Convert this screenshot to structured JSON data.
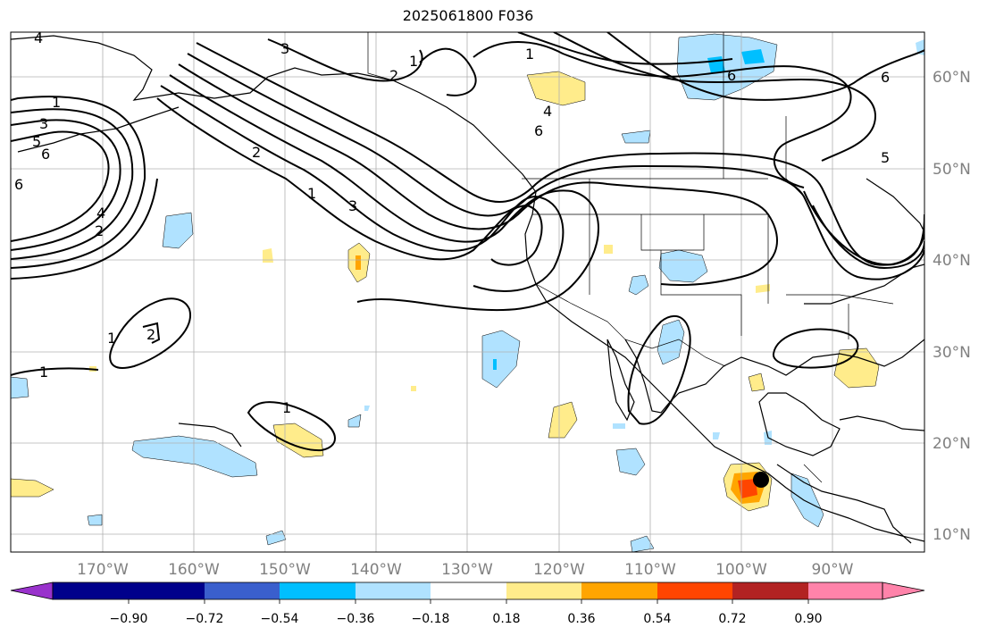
{
  "title": "2025061800 F036",
  "map": {
    "lon_labels": [
      "170°W",
      "160°W",
      "150°W",
      "140°W",
      "130°W",
      "120°W",
      "110°W",
      "100°W",
      "90°W"
    ],
    "lat_labels": [
      "60°N",
      "50°N",
      "40°N",
      "30°N",
      "20°N",
      "10°N"
    ],
    "contour_labels": [
      "4",
      "3",
      "1",
      "2",
      "1",
      "3",
      "5",
      "6",
      "6",
      "4",
      "2",
      "1",
      "2",
      "3",
      "4",
      "6",
      "6",
      "5",
      "6",
      "1",
      "2",
      "1",
      "1",
      "1"
    ],
    "marker": "storm-center-dot"
  },
  "colorbar": {
    "ticks": [
      "−0.90",
      "−0.72",
      "−0.54",
      "−0.36",
      "−0.18",
      "0.18",
      "0.36",
      "0.54",
      "0.72",
      "0.90"
    ],
    "colors": [
      "#9932cc",
      "#00008b",
      "#3a5fcd",
      "#00bfff",
      "#b0e2ff",
      "#ffffff",
      "#ffec8b",
      "#ffa500",
      "#ff4500",
      "#b22222",
      "#ff83aa"
    ]
  }
}
